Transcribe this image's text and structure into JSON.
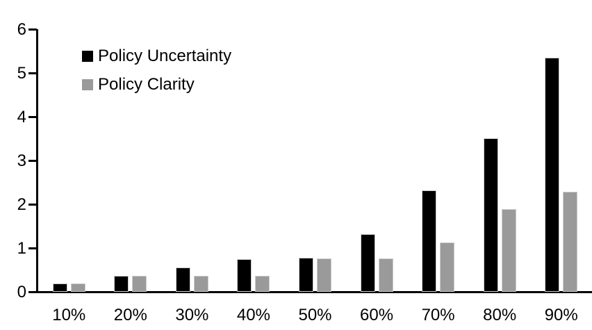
{
  "chart_data": {
    "type": "bar",
    "title": "",
    "xlabel": "",
    "ylabel": "",
    "categories": [
      "10%",
      "20%",
      "30%",
      "40%",
      "50%",
      "60%",
      "70%",
      "80%",
      "90%"
    ],
    "series": [
      {
        "name": "Policy Uncertainty",
        "color": "#000000",
        "values": [
          0.2,
          0.38,
          0.56,
          0.76,
          0.78,
          1.33,
          2.32,
          3.52,
          5.35
        ]
      },
      {
        "name": "Policy Clarity",
        "color": "#9a9a9a",
        "values": [
          0.2,
          0.38,
          0.38,
          0.38,
          0.77,
          0.77,
          1.14,
          1.9,
          2.3
        ]
      }
    ],
    "ylim": [
      0,
      6
    ],
    "yticks": [
      0,
      1,
      2,
      3,
      4,
      5,
      6
    ],
    "grid": false,
    "legend_position": "top-left",
    "axis_color": "#000000",
    "background": "#ffffff"
  }
}
